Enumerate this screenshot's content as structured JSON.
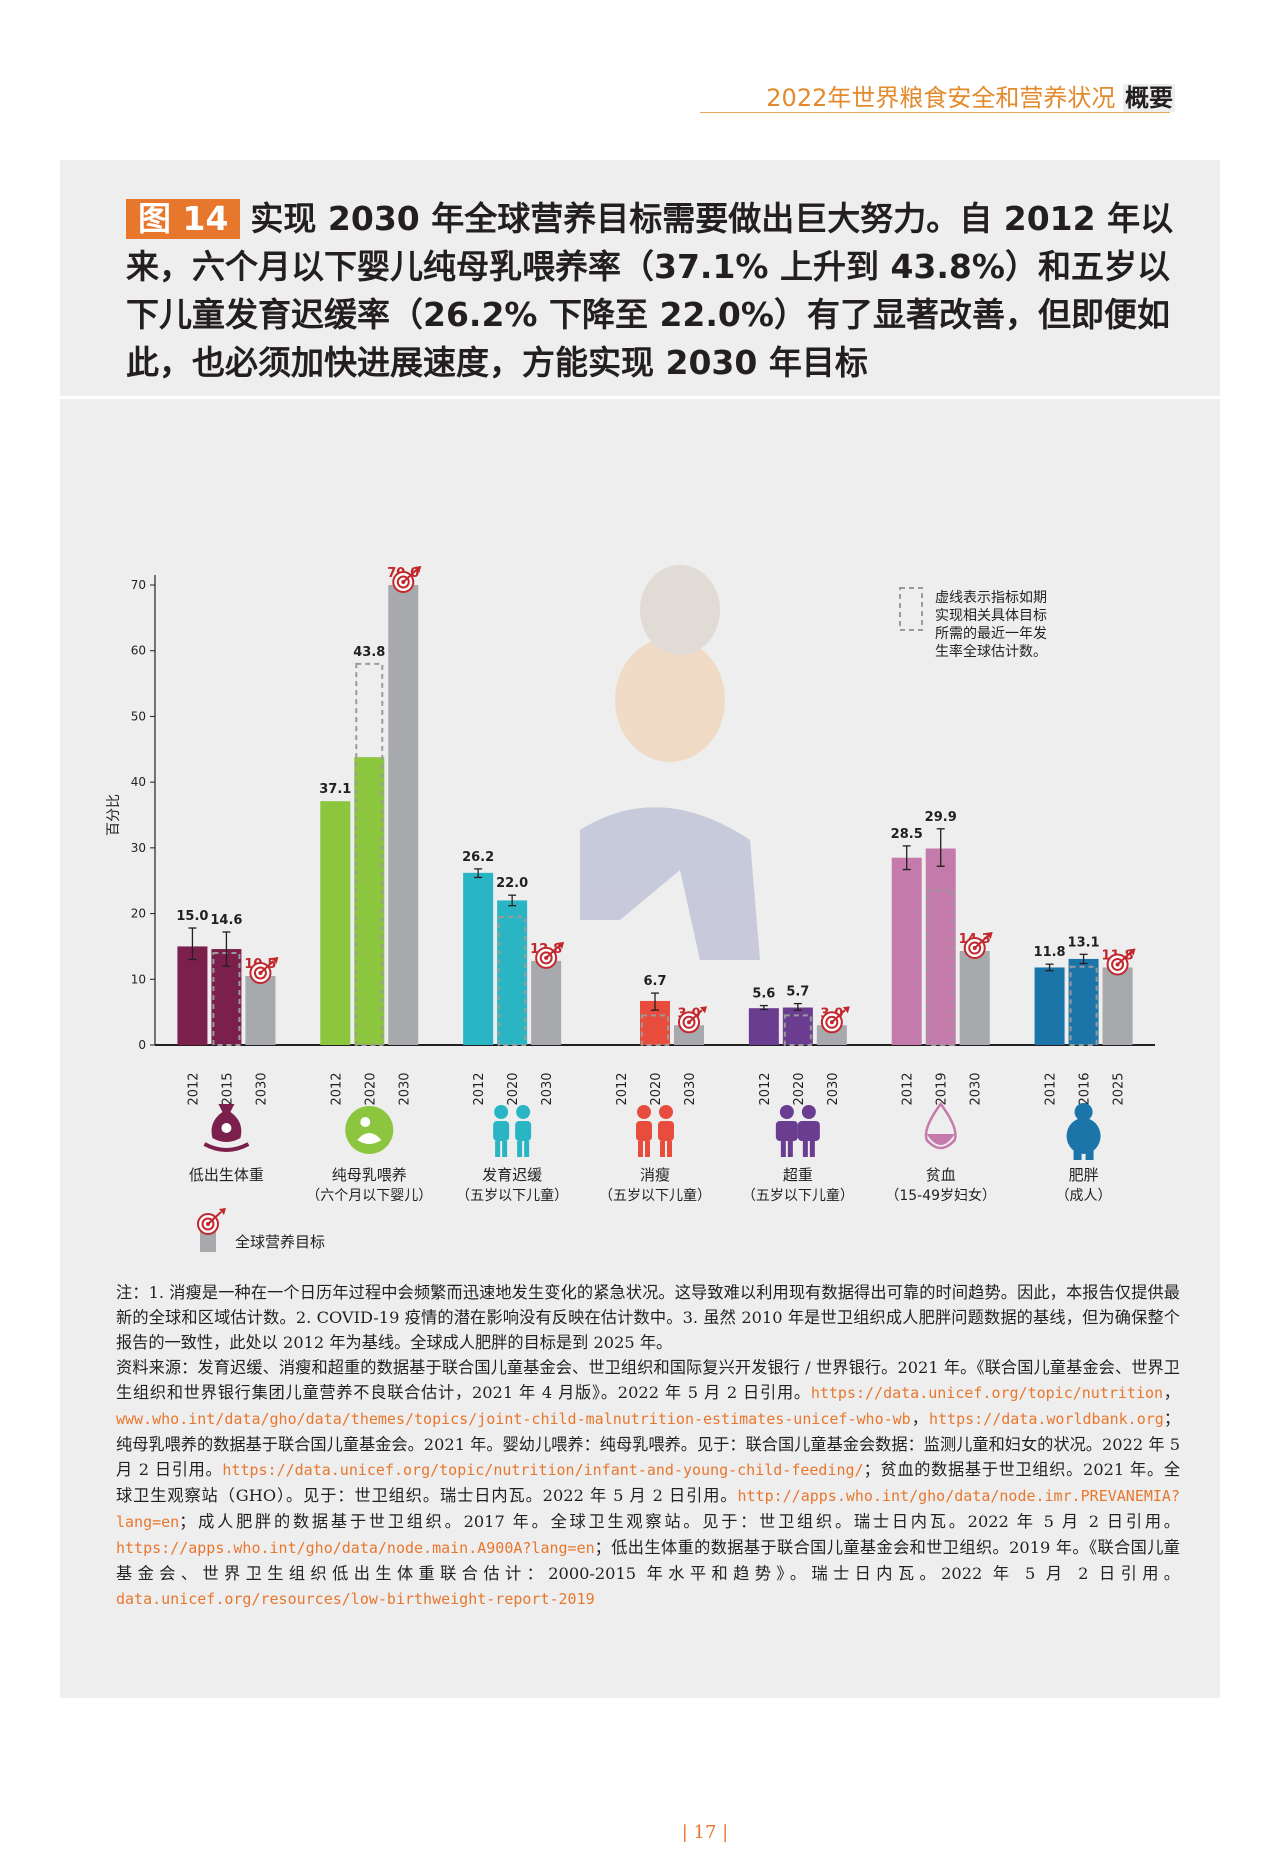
{
  "header": {
    "title": "2022年世界粮食安全和营养状况",
    "suffix": "概要"
  },
  "figure": {
    "badge": "图 14",
    "title": "实现 2030 年全球营养目标需要做出巨大努力。自 2012 年以来，六个月以下婴儿纯母乳喂养率（37.1% 上升到 43.8%）和五岁以下儿童发育迟缓率（26.2% 下降至 22.0%）有了显著改善，但即便如此，也必须加快进展速度，方能实现 2030 年目标"
  },
  "chart_data": {
    "type": "bar",
    "ylabel": "百分比",
    "ylim": [
      0,
      70
    ],
    "yticks": [
      0,
      10,
      20,
      30,
      40,
      50,
      60,
      70
    ],
    "legend_dashed": "虚线表示指标如期实现相关具体目标所需的最近一年发生率全球估计数。",
    "legend_dashed_lines": [
      "虚线表示指标如期",
      "实现相关具体目标",
      "所需的最近一年发",
      "生率全球估计数。"
    ],
    "legend_target": "全球营养目标",
    "groups": [
      {
        "label": "低出生体重",
        "sublabel": "",
        "color": "#7b1f4c",
        "icon": "low-birthweight-icon",
        "bars": [
          {
            "year": "2012",
            "value": 15.0,
            "label": "15.0",
            "err": [
              13.0,
              17.8
            ]
          },
          {
            "year": "2015",
            "value": 14.6,
            "label": "14.6",
            "err": [
              12.0,
              17.2
            ],
            "dashed": 14.0
          },
          {
            "year": "2030",
            "value": 10.5,
            "label": "10.5",
            "target": true
          }
        ]
      },
      {
        "label": "纯母乳喂养",
        "sublabel": "（六个月以下婴儿）",
        "color": "#8cc63e",
        "icon": "breastfeeding-icon",
        "bars": [
          {
            "year": "2012",
            "value": 37.1,
            "label": "37.1"
          },
          {
            "year": "2020",
            "value": 43.8,
            "label": "43.8",
            "dashed": 58.0
          },
          {
            "year": "2030",
            "value": 70.0,
            "label": "70.0",
            "target": true
          }
        ]
      },
      {
        "label": "发育迟缓",
        "sublabel": "（五岁以下儿童）",
        "color": "#29b5c4",
        "icon": "stunting-icon",
        "bars": [
          {
            "year": "2012",
            "value": 26.2,
            "label": "26.2",
            "err": [
              25.5,
              26.8
            ]
          },
          {
            "year": "2020",
            "value": 22.0,
            "label": "22.0",
            "err": [
              21.2,
              22.8
            ],
            "dashed": 19.5
          },
          {
            "year": "2030",
            "value": 12.8,
            "label": "12.8",
            "target": true
          }
        ]
      },
      {
        "label": "消瘦",
        "sublabel": "（五岁以下儿童）",
        "color": "#e84c3d",
        "icon": "wasting-icon",
        "bars": [
          {
            "year": "2012",
            "value": null,
            "label": ""
          },
          {
            "year": "2020",
            "value": 6.7,
            "label": "6.7",
            "err": [
              5.3,
              7.9
            ],
            "dashed": 4.5
          },
          {
            "year": "2030",
            "value": 3.0,
            "label": "3.0",
            "target": true
          }
        ]
      },
      {
        "label": "超重",
        "sublabel": "（五岁以下儿童）",
        "color": "#6a3d91",
        "icon": "overweight-icon",
        "bars": [
          {
            "year": "2012",
            "value": 5.6,
            "label": "5.6",
            "err": [
              5.4,
              6.0
            ]
          },
          {
            "year": "2020",
            "value": 5.7,
            "label": "5.7",
            "err": [
              5.3,
              6.3
            ],
            "dashed": 4.5
          },
          {
            "year": "2030",
            "value": 3.0,
            "label": "3.0",
            "target": true
          }
        ]
      },
      {
        "label": "贫血",
        "sublabel": "（15-49岁妇女）",
        "color": "#c47aab",
        "icon": "anemia-icon",
        "bars": [
          {
            "year": "2012",
            "value": 28.5,
            "label": "28.5",
            "err": [
              26.7,
              30.3
            ]
          },
          {
            "year": "2019",
            "value": 29.9,
            "label": "29.9",
            "err": [
              27.2,
              32.9
            ],
            "dashed": 23.5
          },
          {
            "year": "2030",
            "value": 14.3,
            "label": "14.3",
            "target": true
          }
        ]
      },
      {
        "label": "肥胖",
        "sublabel": "（成人）",
        "color": "#1b75a8",
        "icon": "obesity-icon",
        "bars": [
          {
            "year": "2012",
            "value": 11.8,
            "label": "11.8",
            "err": [
              11.3,
              12.3
            ]
          },
          {
            "year": "2016",
            "value": 13.1,
            "label": "13.1",
            "err": [
              12.4,
              13.8
            ],
            "dashed": 11.9
          },
          {
            "year": "2025",
            "value": 11.8,
            "label": "11.8",
            "target": true
          }
        ]
      }
    ]
  },
  "notes": {
    "note": "注：1. 消瘦是一种在一个日历年过程中会频繁而迅速地发生变化的紧急状况。这导致难以利用现有数据得出可靠的时间趋势。因此，本报告仅提供最新的全球和区域估计数。2. COVID-19 疫情的潜在影响没有反映在估计数中。3. 虽然 2010 年是世卫组织成人肥胖问题数据的基线，但为确保整个报告的一致性，此处以 2012 年为基线。全球成人肥胖的目标是到 2025 年。",
    "s1": "资料来源：发育迟缓、消瘦和超重的数据基于联合国儿童基金会、世卫组织和国际复兴开发银行 / 世界银行。2021 年。《联合国儿童基金会、世界卫生组织和世界银行集团儿童营养不良联合估计，2021 年 4 月版》。2022 年 5 月 2 日引用。",
    "u1": "https://data.unicef.org/topic/nutrition",
    "s2": "，",
    "u2": "www.who.int/data/gho/data/themes/topics/joint-child-malnutrition-estimates-unicef-who-wb",
    "s3": "，",
    "u3": "https://data.worldbank.org",
    "s4": "；纯母乳喂养的数据基于联合国儿童基金会。2021 年。婴幼儿喂养：纯母乳喂养。见于：联合国儿童基金会数据：监测儿童和妇女的状况。2022 年 5 月 2 日引用。",
    "u4": "https://data.unicef.org/topic/nutrition/infant-and-young-child-feeding/",
    "s5": "；贫血的数据基于世卫组织。2021 年。全球卫生观察站（GHO）。见于：世卫组织。瑞士日内瓦。2022 年 5 月 2 日引用。",
    "u5": "http://apps.who.int/gho/data/node.imr.PREVANEMIA?lang=en",
    "s6": "；成人肥胖的数据基于世卫组织。2017 年。全球卫生观察站。见于：世卫组织。瑞士日内瓦。2022 年 5 月 2 日引用。",
    "u6": "https://apps.who.int/gho/data/node.main.A900A?lang=en",
    "s7": "；低出生体重的数据基于联合国儿童基金会和世卫组织。2019 年。《联合国儿童基金会、世界卫生组织低出生体重联合估计：2000-2015 年水平和趋势》。瑞士日内瓦。2022 年 5 月 2 日引用。",
    "u7": "data.unicef.org/resources/low-birthweight-report-2019"
  },
  "page": {
    "number": "| 17 |"
  },
  "colors": {
    "target_bar": "#a7a9ac",
    "target_red": "#c1272d",
    "accent": "#e8772e"
  }
}
